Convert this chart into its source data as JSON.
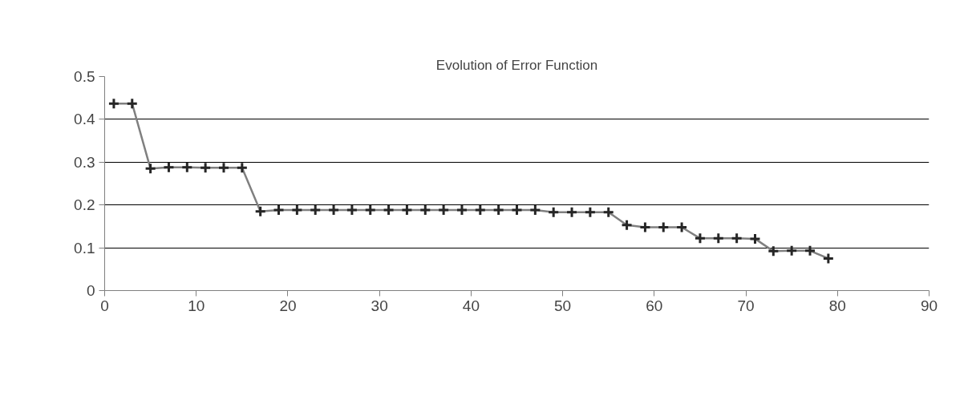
{
  "chart_data": {
    "type": "line",
    "title": "Evolution of Error Function",
    "x": [
      1,
      3,
      5,
      7,
      9,
      11,
      13,
      15,
      17,
      19,
      21,
      23,
      25,
      27,
      29,
      31,
      33,
      35,
      37,
      39,
      41,
      43,
      45,
      47,
      49,
      51,
      53,
      55,
      57,
      59,
      61,
      63,
      65,
      67,
      69,
      71,
      73,
      75,
      77,
      79
    ],
    "series": [
      {
        "color": "#808080",
        "values": [
          0.437,
          0.437,
          0.285,
          0.288,
          0.288,
          0.287,
          0.287,
          0.287,
          0.185,
          0.188,
          0.188,
          0.188,
          0.188,
          0.188,
          0.188,
          0.188,
          0.188,
          0.188,
          0.188,
          0.188,
          0.188,
          0.188,
          0.188,
          0.188,
          0.183,
          0.183,
          0.183,
          0.183,
          0.153,
          0.148,
          0.148,
          0.148,
          0.122,
          0.122,
          0.122,
          0.121,
          0.092,
          0.093,
          0.093,
          0.075
        ]
      }
    ],
    "xlim": [
      0,
      90
    ],
    "xticks": [
      0,
      10,
      20,
      30,
      40,
      50,
      60,
      70,
      80,
      90
    ],
    "ylim": [
      0,
      0.5
    ],
    "yticks": [
      0,
      0.1,
      0.2,
      0.3,
      0.4,
      0.5
    ],
    "grid": "y",
    "marker": "cross",
    "line_style": "solid"
  }
}
